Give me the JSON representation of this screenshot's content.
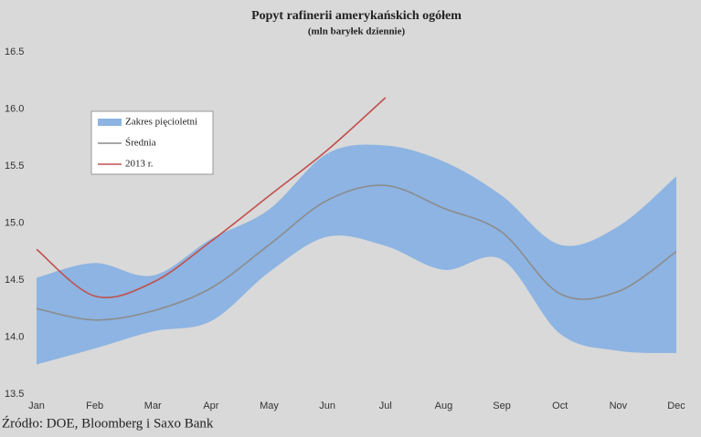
{
  "chart_data": {
    "type": "line",
    "title": "Popyt rafinerii amerykańskich ogółem",
    "subtitle": "(mln baryłek dziennie)",
    "source": "Źródło: DOE, Bloomberg i Saxo Bank",
    "categories": [
      "Jan",
      "Feb",
      "Mar",
      "Apr",
      "May",
      "Jun",
      "Jul",
      "Aug",
      "Sep",
      "Oct",
      "Nov",
      "Dec"
    ],
    "ylim": [
      13.5,
      16.5
    ],
    "yticks": [
      13.5,
      {
        "value": 14,
        "label": "14.0"
      },
      14.5,
      {
        "value": 15,
        "label": "15.0"
      },
      15.5,
      {
        "value": 16,
        "label": "16.0"
      },
      16.5
    ],
    "grid": false,
    "legend": "upper left",
    "series": [
      {
        "name": "Zakres pięcioletni",
        "type": "range",
        "color": "#8db4e2",
        "high": [
          14.52,
          14.65,
          14.54,
          14.86,
          15.12,
          15.61,
          15.68,
          15.54,
          15.24,
          14.81,
          14.97,
          15.41
        ],
        "low": [
          13.76,
          13.9,
          14.05,
          14.14,
          14.57,
          14.88,
          14.8,
          14.59,
          14.68,
          14.03,
          13.88,
          13.86
        ]
      },
      {
        "name": "Średnia",
        "type": "line",
        "color": "#8c8c8c",
        "values": [
          14.25,
          14.15,
          14.23,
          14.43,
          14.81,
          15.2,
          15.33,
          15.13,
          14.92,
          14.38,
          14.4,
          14.75
        ]
      },
      {
        "name": "2013 r.",
        "type": "line",
        "color": "#c0504d",
        "values": [
          14.77,
          14.36,
          14.48,
          14.84,
          15.24,
          15.64,
          16.1,
          null,
          null,
          null,
          null,
          null
        ]
      }
    ]
  }
}
